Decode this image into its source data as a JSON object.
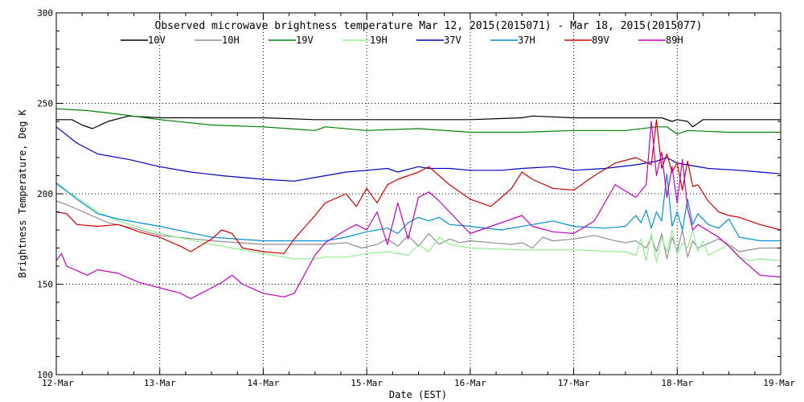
{
  "chart_data": {
    "type": "line",
    "title": "Observed microwave brightness temperature Mar 12, 2015(2015071) - Mar 18, 2015(2015077)",
    "xlabel": "Date (EST)",
    "ylabel": "Brightness Temperature, Deg K",
    "ylim": [
      100,
      300
    ],
    "xlim": [
      0,
      7
    ],
    "yticks": [
      100,
      150,
      200,
      250,
      300
    ],
    "ytick_labels": [
      "100",
      "150",
      "200",
      "250",
      "300"
    ],
    "xticks": [
      0,
      1,
      2,
      3,
      4,
      5,
      6,
      7
    ],
    "xtick_labels": [
      "12-Mar",
      "13-Mar",
      "14-Mar",
      "15-Mar",
      "16-Mar",
      "17-Mar",
      "18-Mar",
      "19-Mar"
    ],
    "grid": "dotted",
    "legend_placement": "top",
    "x_units": "days since 12-Mar 00:00 EST",
    "series": [
      {
        "name": "10V",
        "color": "#000000",
        "x": [
          0,
          0.15,
          0.25,
          0.35,
          0.5,
          0.7,
          1.0,
          1.5,
          2.0,
          2.5,
          3.0,
          3.5,
          4.0,
          4.5,
          4.6,
          5.0,
          5.5,
          5.85,
          5.95,
          6.0,
          6.1,
          6.15,
          6.25,
          6.5,
          7.0
        ],
        "y": [
          241,
          241,
          238,
          236,
          240,
          243,
          242,
          242,
          242,
          241,
          241,
          241,
          241,
          242,
          243,
          242,
          242,
          242,
          240,
          241,
          240,
          237,
          241,
          241,
          241
        ]
      },
      {
        "name": "10H",
        "color": "#909090",
        "x": [
          0,
          0.1,
          0.3,
          0.5,
          0.75,
          1.0,
          1.5,
          2.0,
          2.5,
          2.6,
          2.8,
          2.95,
          3.1,
          3.2,
          3.3,
          3.4,
          3.5,
          3.6,
          3.7,
          3.8,
          3.9,
          4.0,
          4.2,
          4.4,
          4.5,
          4.6,
          4.7,
          4.8,
          5.0,
          5.2,
          5.4,
          5.5,
          5.6,
          5.7,
          5.75,
          5.8,
          5.85,
          5.9,
          5.95,
          6.0,
          6.05,
          6.1,
          6.15,
          6.2,
          6.4,
          6.5,
          6.6,
          6.8,
          7.0
        ],
        "y": [
          196,
          194,
          189,
          184,
          181,
          177,
          174,
          172,
          172,
          172,
          173,
          170,
          172,
          175,
          171,
          177,
          171,
          178,
          172,
          175,
          173,
          174,
          173,
          172,
          173,
          170,
          176,
          174,
          175,
          177,
          174,
          173,
          174,
          170,
          176,
          168,
          178,
          164,
          176,
          168,
          180,
          165,
          174,
          170,
          175,
          172,
          168,
          170,
          170
        ]
      },
      {
        "name": "19V",
        "color": "#008000",
        "x": [
          0,
          0.3,
          0.6,
          1.0,
          1.5,
          2.0,
          2.5,
          2.6,
          3.0,
          3.5,
          4.0,
          4.5,
          5.0,
          5.5,
          5.8,
          5.9,
          6.0,
          6.1,
          6.5,
          7.0
        ],
        "y": [
          247,
          246,
          244,
          241,
          238,
          237,
          235,
          237,
          235,
          236,
          234,
          234,
          235,
          235,
          237,
          237,
          233,
          235,
          234,
          234
        ]
      },
      {
        "name": "19H",
        "color": "#90ee90",
        "x": [
          0,
          0.2,
          0.4,
          0.6,
          1.0,
          1.5,
          2.0,
          2.3,
          2.5,
          2.6,
          2.8,
          3.0,
          3.2,
          3.4,
          3.5,
          3.6,
          3.7,
          3.8,
          4.0,
          4.5,
          5.0,
          5.4,
          5.5,
          5.6,
          5.65,
          5.7,
          5.75,
          5.8,
          5.85,
          5.9,
          5.95,
          6.0,
          6.05,
          6.1,
          6.15,
          6.2,
          6.25,
          6.3,
          6.5,
          6.6,
          6.7,
          6.8,
          7.0
        ],
        "y": [
          205,
          198,
          190,
          185,
          178,
          172,
          167,
          164,
          164,
          165,
          165,
          167,
          168,
          166,
          172,
          168,
          176,
          172,
          170,
          169,
          169,
          168,
          168,
          166,
          175,
          163,
          178,
          162,
          176,
          168,
          180,
          166,
          173,
          170,
          180,
          168,
          174,
          166,
          172,
          165,
          163,
          164,
          163
        ]
      },
      {
        "name": "37V",
        "color": "#0000c0",
        "x": [
          0,
          0.2,
          0.4,
          0.7,
          1.0,
          1.3,
          1.6,
          2.0,
          2.3,
          2.6,
          2.8,
          3.0,
          3.2,
          3.3,
          3.5,
          3.6,
          3.8,
          4.0,
          4.3,
          4.5,
          4.8,
          5.0,
          5.3,
          5.6,
          5.8,
          5.9,
          6.0,
          6.1,
          6.3,
          6.6,
          6.8,
          7.0
        ],
        "y": [
          237,
          228,
          222,
          219,
          215,
          212,
          210,
          208,
          207,
          210,
          212,
          213,
          214,
          212,
          215,
          214,
          214,
          213,
          213,
          214,
          215,
          213,
          214,
          216,
          218,
          220,
          217,
          216,
          214,
          213,
          212,
          211
        ]
      },
      {
        "name": "37H",
        "color": "#0090d0",
        "x": [
          0,
          0.2,
          0.4,
          0.6,
          1.0,
          1.5,
          2.0,
          2.5,
          2.6,
          2.8,
          3.0,
          3.2,
          3.3,
          3.4,
          3.5,
          3.6,
          3.7,
          3.8,
          4.0,
          4.3,
          4.6,
          4.8,
          5.0,
          5.3,
          5.5,
          5.6,
          5.65,
          5.7,
          5.75,
          5.8,
          5.85,
          5.9,
          5.95,
          6.0,
          6.05,
          6.1,
          6.15,
          6.2,
          6.3,
          6.4,
          6.5,
          6.6,
          6.8,
          7.0
        ],
        "y": [
          206,
          197,
          189,
          186,
          182,
          176,
          174,
          174,
          174,
          176,
          179,
          181,
          178,
          184,
          187,
          185,
          187,
          183,
          182,
          180,
          183,
          185,
          182,
          181,
          182,
          188,
          184,
          191,
          181,
          190,
          185,
          211,
          182,
          190,
          180,
          197,
          183,
          189,
          183,
          181,
          186,
          176,
          174,
          174
        ]
      },
      {
        "name": "89V",
        "color": "#d00000",
        "x": [
          0,
          0.1,
          0.2,
          0.4,
          0.6,
          0.8,
          1.0,
          1.2,
          1.3,
          1.5,
          1.6,
          1.7,
          1.8,
          2.0,
          2.2,
          2.3,
          2.5,
          2.6,
          2.8,
          2.9,
          3.0,
          3.1,
          3.2,
          3.3,
          3.4,
          3.5,
          3.6,
          3.7,
          3.8,
          4.0,
          4.2,
          4.3,
          4.4,
          4.5,
          4.6,
          4.8,
          5.0,
          5.2,
          5.4,
          5.6,
          5.75,
          5.8,
          5.85,
          5.9,
          5.95,
          6.0,
          6.05,
          6.1,
          6.15,
          6.2,
          6.3,
          6.4,
          6.5,
          6.6,
          6.8,
          7.0
        ],
        "y": [
          190,
          189,
          183,
          182,
          183,
          179,
          176,
          171,
          168,
          175,
          180,
          178,
          170,
          168,
          167,
          175,
          188,
          195,
          200,
          193,
          203,
          195,
          205,
          208,
          210,
          212,
          215,
          210,
          205,
          197,
          193,
          198,
          203,
          212,
          208,
          203,
          202,
          210,
          217,
          220,
          216,
          241,
          214,
          222,
          212,
          217,
          202,
          218,
          204,
          205,
          196,
          190,
          188,
          187,
          183,
          180
        ]
      },
      {
        "name": "89H",
        "color": "#c000c0",
        "x": [
          0,
          0.05,
          0.1,
          0.3,
          0.4,
          0.6,
          0.8,
          1.0,
          1.2,
          1.3,
          1.4,
          1.6,
          1.7,
          1.8,
          2.0,
          2.2,
          2.3,
          2.5,
          2.6,
          2.8,
          2.9,
          3.0,
          3.1,
          3.2,
          3.3,
          3.4,
          3.5,
          3.6,
          3.7,
          3.8,
          4.0,
          4.2,
          4.4,
          4.5,
          4.6,
          4.8,
          5.0,
          5.2,
          5.4,
          5.6,
          5.7,
          5.75,
          5.8,
          5.85,
          5.9,
          5.95,
          6.0,
          6.05,
          6.1,
          6.15,
          6.2,
          6.4,
          6.5,
          6.6,
          6.8,
          7.0
        ],
        "y": [
          163,
          167,
          160,
          155,
          158,
          156,
          151,
          148,
          145,
          142,
          145,
          151,
          155,
          150,
          145,
          143,
          145,
          166,
          173,
          180,
          183,
          180,
          190,
          172,
          195,
          175,
          198,
          201,
          196,
          190,
          178,
          182,
          186,
          188,
          182,
          179,
          178,
          185,
          205,
          198,
          205,
          240,
          210,
          223,
          198,
          215,
          195,
          219,
          192,
          180,
          183,
          176,
          171,
          165,
          155,
          154
        ]
      }
    ]
  }
}
